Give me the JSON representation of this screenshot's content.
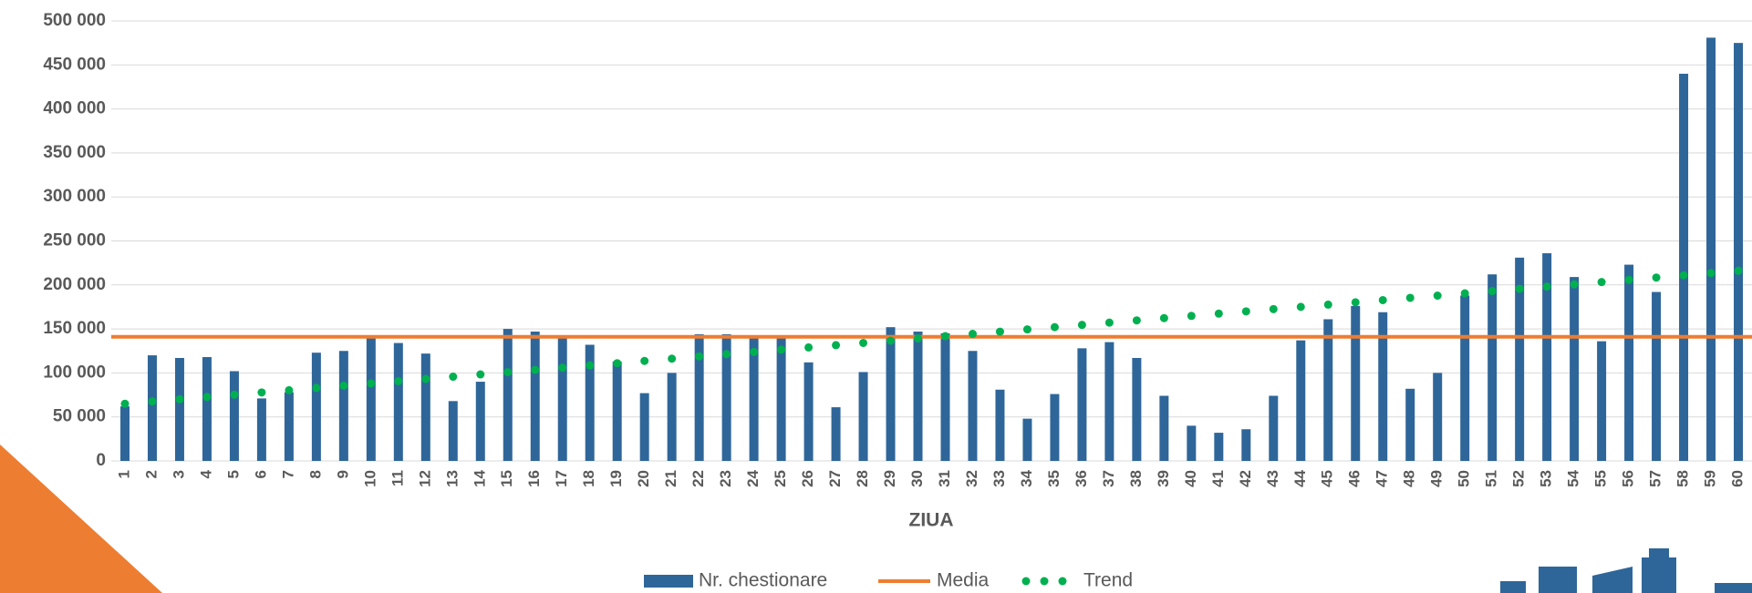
{
  "chart_data": {
    "type": "bar",
    "x_label": "ZIUA",
    "categories": [
      "1",
      "2",
      "3",
      "4",
      "5",
      "6",
      "7",
      "8",
      "9",
      "10",
      "11",
      "12",
      "13",
      "14",
      "15",
      "16",
      "17",
      "18",
      "19",
      "20",
      "21",
      "22",
      "23",
      "24",
      "25",
      "26",
      "27",
      "28",
      "29",
      "30",
      "31",
      "32",
      "33",
      "34",
      "35",
      "36",
      "37",
      "38",
      "39",
      "40",
      "41",
      "42",
      "43",
      "44",
      "45",
      "46",
      "47",
      "48",
      "49",
      "50",
      "51",
      "52",
      "53",
      "54",
      "55",
      "56",
      "57",
      "58",
      "59",
      "60"
    ],
    "series": [
      {
        "name": "Nr. chestionare",
        "color": "#2f6699",
        "values": [
          62000,
          120000,
          117000,
          118000,
          102000,
          71000,
          78000,
          123000,
          125000,
          141000,
          134000,
          122000,
          68000,
          90000,
          150000,
          147000,
          141000,
          132000,
          113000,
          77000,
          100000,
          144000,
          144000,
          141000,
          140000,
          112000,
          61000,
          101000,
          152000,
          147000,
          145000,
          125000,
          81000,
          48000,
          76000,
          128000,
          135000,
          117000,
          74000,
          40000,
          32000,
          36000,
          74000,
          137000,
          161000,
          176000,
          169000,
          82000,
          100000,
          188000,
          212000,
          231000,
          236000,
          209000,
          136000,
          223000,
          192000,
          440000,
          481000,
          475000
        ]
      },
      {
        "name": "Media",
        "color": "#ed7d31",
        "value": 141000
      },
      {
        "name": "Trend",
        "color": "#00b050",
        "values": [
          65000,
          67560,
          70120,
          72680,
          75240,
          77800,
          80360,
          82920,
          85480,
          88040,
          90600,
          93160,
          95720,
          98280,
          100840,
          103400,
          105960,
          108520,
          111080,
          113640,
          116200,
          118760,
          121320,
          123880,
          126440,
          129000,
          131560,
          134120,
          136680,
          139240,
          141800,
          144360,
          146920,
          149480,
          152040,
          154600,
          157160,
          159720,
          162280,
          164840,
          167400,
          169960,
          172520,
          175080,
          177640,
          180200,
          182760,
          185320,
          187880,
          190440,
          193000,
          195560,
          198120,
          200680,
          203240,
          205800,
          208360,
          210920,
          213480,
          216040
        ]
      }
    ],
    "ylim": [
      0,
      500000
    ],
    "yticks": [
      {
        "value": 0,
        "label": "0"
      },
      {
        "value": 50000,
        "label": "50 000"
      },
      {
        "value": 100000,
        "label": "100 000"
      },
      {
        "value": 150000,
        "label": "150 000"
      },
      {
        "value": 200000,
        "label": "200 000"
      },
      {
        "value": 250000,
        "label": "250 000"
      },
      {
        "value": 300000,
        "label": "300 000"
      },
      {
        "value": 350000,
        "label": "350 000"
      },
      {
        "value": 400000,
        "label": "400 000"
      },
      {
        "value": 450000,
        "label": "450 000"
      },
      {
        "value": 500000,
        "label": "500 000"
      }
    ],
    "grid": true,
    "legend": "bottom"
  }
}
